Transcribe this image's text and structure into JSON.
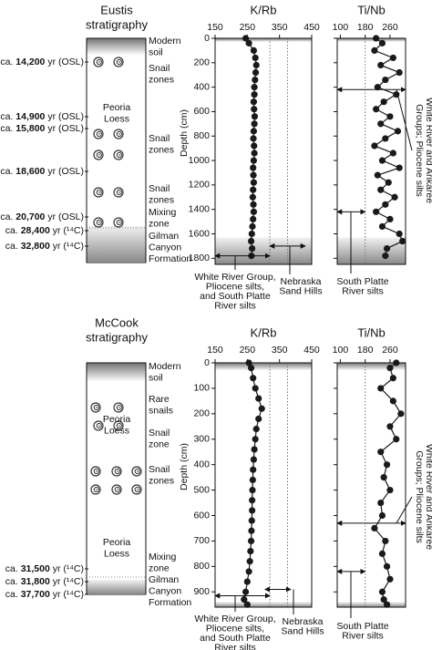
{
  "chart_data": [
    {
      "type": "line",
      "title": "K/Rb",
      "ylabel": "Depth (cm)",
      "color": "#1a1a1a",
      "xlim": [
        150,
        450
      ],
      "xticks": [
        150,
        250,
        350,
        450
      ],
      "ylim": [
        0,
        1850
      ],
      "yticks": [
        0,
        200,
        400,
        600,
        800,
        1000,
        1200,
        1400,
        1600,
        1800
      ],
      "depths": [
        0,
        40,
        100,
        160,
        220,
        280,
        340,
        400,
        460,
        520,
        580,
        640,
        700,
        760,
        820,
        880,
        940,
        1000,
        1060,
        1120,
        1180,
        1240,
        1300,
        1360,
        1420,
        1480,
        1540,
        1600,
        1660,
        1720,
        1780
      ],
      "values": [
        245,
        255,
        270,
        275,
        278,
        276,
        274,
        272,
        272,
        270,
        271,
        273,
        272,
        270,
        269,
        271,
        272,
        270,
        268,
        269,
        270,
        268,
        267,
        269,
        270,
        268,
        266,
        264,
        262,
        265,
        263
      ],
      "ref_lines": [
        320,
        375
      ],
      "shaded": [
        [
          0,
          30
        ],
        [
          1630,
          1850
        ]
      ],
      "annotations": [
        {
          "label": [
            "White River Group,",
            "Pliocene silts,",
            "and South Platte",
            "River silts"
          ],
          "range": [
            150,
            320
          ],
          "depth": 1780
        },
        {
          "label": [
            "Nebraska",
            "Sand Hills"
          ],
          "range": [
            320,
            430
          ],
          "depth": 1700
        }
      ]
    },
    {
      "type": "line",
      "title": "Ti/Nb",
      "color": "#1a1a1a",
      "xlim": [
        90,
        310
      ],
      "xticks": [
        100,
        180,
        260
      ],
      "ylim": [
        0,
        1850
      ],
      "yticks": [
        0,
        200,
        400,
        600,
        800,
        1000,
        1200,
        1400,
        1600,
        1800
      ],
      "depths": [
        0,
        40,
        100,
        160,
        220,
        280,
        340,
        400,
        460,
        520,
        580,
        640,
        700,
        760,
        820,
        880,
        940,
        1000,
        1060,
        1120,
        1180,
        1240,
        1300,
        1360,
        1420,
        1480,
        1540,
        1600,
        1660,
        1720,
        1780
      ],
      "values": [
        215,
        235,
        210,
        270,
        230,
        290,
        245,
        220,
        280,
        240,
        215,
        260,
        230,
        285,
        245,
        210,
        270,
        235,
        290,
        220,
        255,
        230,
        275,
        245,
        215,
        260,
        235,
        290,
        300,
        250,
        245
      ],
      "ref_lines": [
        180
      ],
      "shaded": [
        [
          0,
          30
        ],
        [
          1630,
          1850
        ]
      ],
      "annotations": [
        {
          "label": [
            "White River and Arikaree",
            "Groups; Pliocene silts"
          ],
          "range": [
            90,
            310
          ],
          "depth": 420
        },
        {
          "label": [
            "South Platte",
            "River silts"
          ],
          "range": [
            90,
            180
          ],
          "depth": 1420
        }
      ]
    },
    {
      "type": "line",
      "title": "K/Rb",
      "ylabel": "Depth (cm)",
      "color": "#1a1a1a",
      "xlim": [
        150,
        450
      ],
      "xticks": [
        150,
        250,
        350,
        450
      ],
      "ylim": [
        0,
        960
      ],
      "yticks": [
        0,
        100,
        200,
        300,
        400,
        500,
        600,
        700,
        800,
        900
      ],
      "depths": [
        0,
        20,
        60,
        100,
        140,
        180,
        220,
        260,
        300,
        340,
        380,
        420,
        460,
        500,
        540,
        580,
        620,
        660,
        700,
        740,
        780,
        820,
        860,
        900,
        930,
        950
      ],
      "values": [
        255,
        262,
        268,
        275,
        285,
        295,
        285,
        278,
        275,
        272,
        270,
        268,
        267,
        266,
        265,
        265,
        264,
        263,
        262,
        260,
        258,
        255,
        250,
        245,
        240,
        250
      ],
      "ref_lines": [
        320,
        375
      ],
      "shaded": [
        [
          0,
          30
        ],
        [
          940,
          960
        ]
      ],
      "annotations": [
        {
          "label": [
            "White River Group,",
            "Pliocene silts,",
            "and South Platte",
            "River silts"
          ],
          "range": [
            150,
            320
          ],
          "depth": 915
        },
        {
          "label": [
            "Nebraska",
            "Sand Hills"
          ],
          "range": [
            305,
            385
          ],
          "depth": 890
        }
      ]
    },
    {
      "type": "line",
      "title": "Ti/Nb",
      "color": "#1a1a1a",
      "xlim": [
        90,
        310
      ],
      "xticks": [
        100,
        180,
        260
      ],
      "ylim": [
        0,
        960
      ],
      "yticks": [
        0,
        100,
        200,
        300,
        400,
        500,
        600,
        700,
        800,
        900
      ],
      "depths": [
        0,
        20,
        60,
        100,
        150,
        200,
        250,
        300,
        350,
        400,
        450,
        500,
        550,
        600,
        650,
        700,
        750,
        800,
        850,
        900,
        930,
        950
      ],
      "values": [
        280,
        260,
        270,
        230,
        270,
        295,
        260,
        280,
        230,
        250,
        240,
        260,
        230,
        235,
        210,
        245,
        235,
        250,
        260,
        235,
        240,
        250
      ],
      "ref_lines": [
        180
      ],
      "shaded": [
        [
          0,
          30
        ],
        [
          940,
          960
        ]
      ],
      "annotations": [
        {
          "label": [
            "White River and Arikaree",
            "Groups; Pliocene silts"
          ],
          "range": [
            90,
            310
          ],
          "depth": 630
        },
        {
          "label": [
            "South Platte",
            "River silts"
          ],
          "range": [
            90,
            180
          ],
          "depth": 820
        }
      ]
    }
  ],
  "stratigraphy": [
    {
      "title": [
        "Eustis",
        "stratigraphy"
      ],
      "ages": [
        {
          "prefix": "ca.",
          "age": "14,200",
          "unit": "yr (OSL)"
        },
        {
          "prefix": "ca.",
          "age": "14,900",
          "unit": "yr (OSL)"
        },
        {
          "prefix": "ca.",
          "age": "15,800",
          "unit": "yr (OSL)"
        },
        {
          "prefix": "ca.",
          "age": "18,600",
          "unit": "yr (OSL)"
        },
        {
          "prefix": "ca.",
          "age": "20,700",
          "unit": "yr (OSL)"
        },
        {
          "prefix": "ca.",
          "age": "28,400",
          "unit": "yr (¹⁴C)"
        },
        {
          "prefix": "ca.",
          "age": "32,800",
          "unit": "yr (¹⁴C)"
        }
      ],
      "labels": [
        [
          "Modern",
          "soil"
        ],
        [
          "Snail",
          "zones"
        ],
        [
          "Peoria",
          "Loess"
        ],
        [
          "Snail",
          "zones"
        ],
        [
          "Snail",
          "zones"
        ],
        [
          "Mixing",
          "zone"
        ],
        [
          "Gilman",
          "Canyon",
          "Formation"
        ]
      ]
    },
    {
      "title": [
        "McCook",
        "stratigraphy"
      ],
      "ages": [
        {
          "prefix": "ca.",
          "age": "31,500",
          "unit": "yr (¹⁴C)"
        },
        {
          "prefix": "ca.",
          "age": "31,800",
          "unit": "yr (¹⁴C)"
        },
        {
          "prefix": "ca.",
          "age": "37,700",
          "unit": "yr (¹⁴C)"
        }
      ],
      "labels": [
        [
          "Modern",
          "soil"
        ],
        [
          "Rare",
          "snails"
        ],
        [
          "Peoria",
          "Loess"
        ],
        [
          "Snail",
          "zone"
        ],
        [
          "Snail",
          "zones"
        ],
        [
          "Peoria",
          "Loess"
        ],
        [
          "Mixing",
          "zone"
        ],
        [
          "Gilman",
          "Canyon",
          "Formation"
        ]
      ]
    }
  ]
}
